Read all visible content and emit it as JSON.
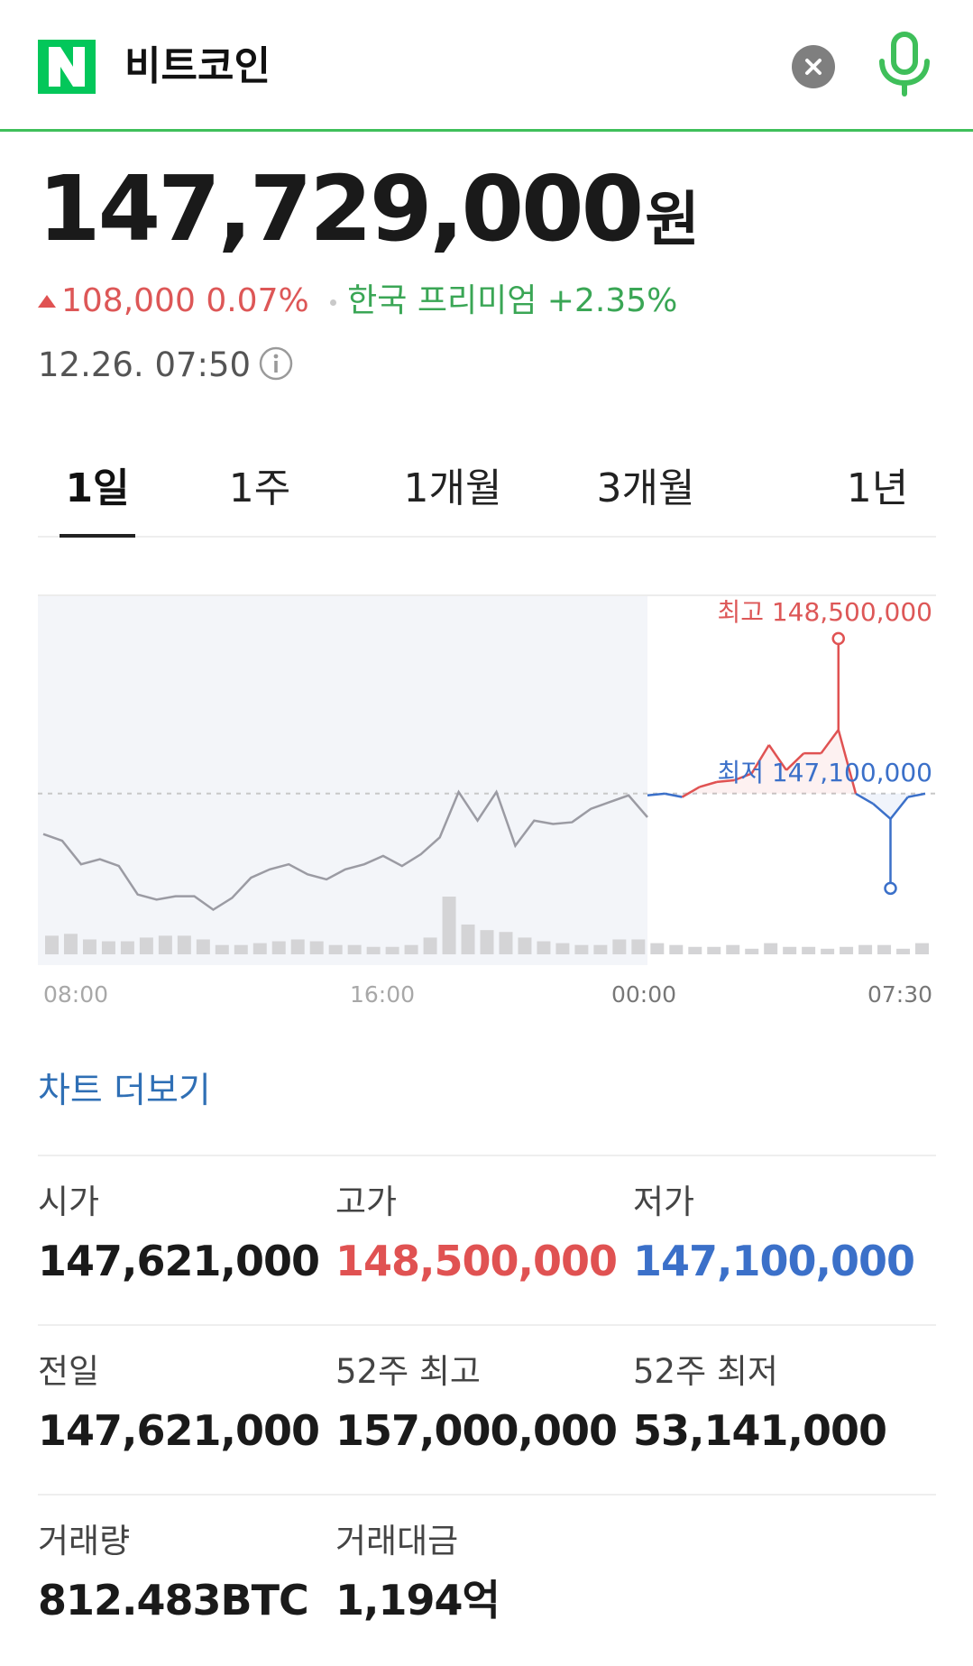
{
  "search": {
    "query": "비트코인",
    "logo_icon": "naver-n-logo",
    "clear_icon": "close-icon",
    "mic_icon": "microphone-icon",
    "brand_color": "#03c75a"
  },
  "quote": {
    "price": "147,729,000",
    "unit": "원",
    "change_amount": "108,000",
    "change_percent": "0.07%",
    "direction": "up",
    "premium_label": "한국 프리미엄",
    "premium_value": "+2.35%",
    "timestamp": "12.26. 07:50",
    "info_icon": "info-icon",
    "up_color": "#e05252",
    "down_color": "#3b70c9"
  },
  "tabs": [
    {
      "label": "1일",
      "active": true
    },
    {
      "label": "1주",
      "active": false
    },
    {
      "label": "1개월",
      "active": false
    },
    {
      "label": "3개월",
      "active": false
    },
    {
      "label": "1년",
      "active": false
    }
  ],
  "chart_data": {
    "type": "line",
    "x_tick_labels": [
      "08:00",
      "16:00",
      "00:00",
      "07:30"
    ],
    "high_annotation": "최고 148,500,000",
    "low_annotation": "최저 147,100,000",
    "reference_line": "previous close (dashed)",
    "y_range": [
      146600000,
      148800000
    ],
    "previous_close": 147621000,
    "series_previous_day": [
      147380000,
      147340000,
      147200000,
      147230000,
      147190000,
      147020000,
      146990000,
      147010000,
      147010000,
      146930000,
      147000000,
      147120000,
      147170000,
      147200000,
      147140000,
      147110000,
      147170000,
      147200000,
      147250000,
      147190000,
      147260000,
      147360000,
      147630000,
      147460000,
      147630000,
      147310000,
      147460000,
      147440000,
      147450000,
      147530000,
      147570000,
      147610000,
      147480000
    ],
    "series_today": [
      147610000,
      147620000,
      147600000,
      147660000,
      147690000,
      147700000,
      147740000,
      147910000,
      147760000,
      147860000,
      147860000,
      148000000,
      147620000,
      147560000,
      147470000,
      147600000,
      147620000
    ],
    "high_value": 148500000,
    "low_value": 147100000,
    "volume": [
      1.0,
      1.1,
      0.8,
      0.7,
      0.7,
      0.9,
      1.0,
      1.0,
      0.8,
      0.5,
      0.5,
      0.6,
      0.7,
      0.8,
      0.7,
      0.5,
      0.5,
      0.4,
      0.4,
      0.5,
      0.9,
      3.1,
      1.6,
      1.3,
      1.2,
      0.9,
      0.7,
      0.6,
      0.5,
      0.5,
      0.8,
      0.8,
      0.6,
      0.5,
      0.4,
      0.4,
      0.5,
      0.3,
      0.6,
      0.4,
      0.4,
      0.3,
      0.4,
      0.5,
      0.5,
      0.3,
      0.6
    ],
    "colors": {
      "past_line": "#9b9ba3",
      "today_up": "#e05252",
      "today_down": "#3b70c9",
      "past_shade": "#f3f5f9",
      "volume_bar": "#d4d4d6"
    }
  },
  "more_chart_link": "차트 더보기",
  "stats": [
    [
      {
        "label": "시가",
        "value": "147,621,000",
        "tone": ""
      },
      {
        "label": "고가",
        "value": "148,500,000",
        "tone": "high"
      },
      {
        "label": "저가",
        "value": "147,100,000",
        "tone": "low"
      }
    ],
    [
      {
        "label": "전일",
        "value": "147,621,000",
        "tone": ""
      },
      {
        "label": "52주 최고",
        "value": "157,000,000",
        "tone": ""
      },
      {
        "label": "52주 최저",
        "value": "53,141,000",
        "tone": ""
      }
    ],
    [
      {
        "label": "거래량",
        "value": "812.483BTC",
        "tone": ""
      },
      {
        "label": "거래대금",
        "value": "1,194억",
        "tone": ""
      }
    ]
  ]
}
